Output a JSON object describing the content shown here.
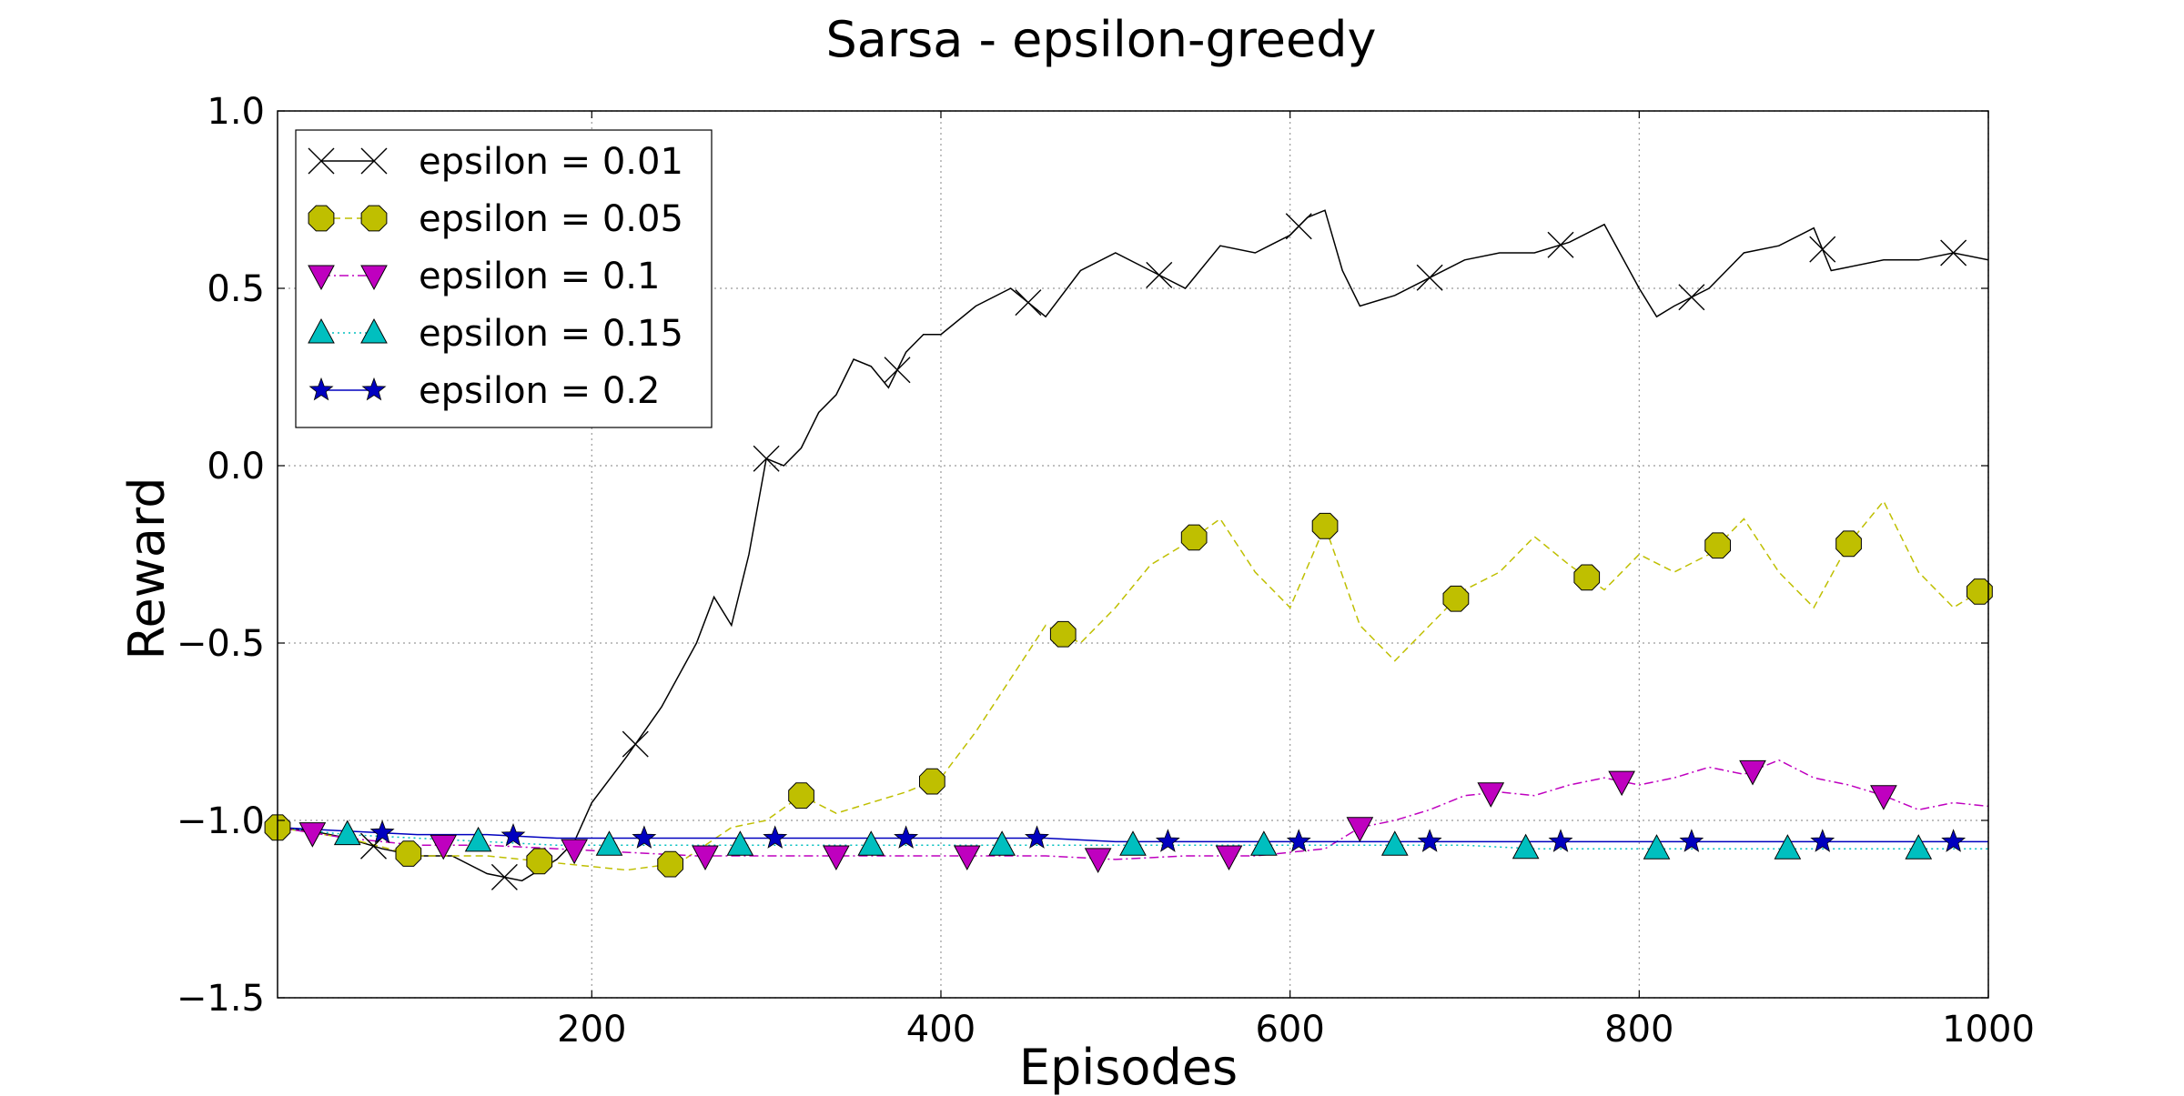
{
  "chart_data": {
    "type": "line",
    "title": "Sarsa - epsilon-greedy",
    "xlabel": "Episodes",
    "ylabel": "Reward",
    "xlim": [
      20,
      1000
    ],
    "ylim": [
      -1.5,
      1.0
    ],
    "xticks": [
      200,
      400,
      600,
      800,
      1000
    ],
    "xtick_labels": [
      "200",
      "400",
      "600",
      "800",
      "1000"
    ],
    "yticks": [
      -1.5,
      -1.0,
      -0.5,
      0.0,
      0.5,
      1.0
    ],
    "ytick_labels": [
      "−1.5",
      "−1.0",
      "−0.5",
      "0.0",
      "0.5",
      "1.0"
    ],
    "grid": true,
    "legend_position": "top-left",
    "series": [
      {
        "name": "epsilon = 0.01",
        "color": "#000000",
        "line_style": "solid",
        "marker": "x",
        "x": [
          20,
          40,
          60,
          80,
          100,
          120,
          140,
          160,
          180,
          190,
          200,
          220,
          240,
          260,
          270,
          280,
          290,
          300,
          310,
          320,
          330,
          340,
          350,
          360,
          370,
          380,
          390,
          400,
          420,
          440,
          460,
          480,
          500,
          520,
          540,
          560,
          580,
          600,
          610,
          620,
          630,
          640,
          660,
          680,
          700,
          720,
          740,
          760,
          780,
          800,
          810,
          820,
          840,
          860,
          880,
          900,
          910,
          920,
          940,
          960,
          980,
          1000
        ],
        "y": [
          -1.02,
          -1.03,
          -1.05,
          -1.08,
          -1.1,
          -1.1,
          -1.15,
          -1.17,
          -1.11,
          -1.06,
          -0.95,
          -0.82,
          -0.68,
          -0.5,
          -0.37,
          -0.45,
          -0.25,
          0.02,
          0.0,
          0.05,
          0.15,
          0.2,
          0.3,
          0.28,
          0.22,
          0.32,
          0.37,
          0.37,
          0.45,
          0.5,
          0.42,
          0.55,
          0.6,
          0.55,
          0.5,
          0.62,
          0.6,
          0.65,
          0.7,
          0.72,
          0.55,
          0.45,
          0.48,
          0.53,
          0.58,
          0.6,
          0.6,
          0.63,
          0.68,
          0.5,
          0.42,
          0.45,
          0.5,
          0.6,
          0.62,
          0.67,
          0.55,
          0.56,
          0.58,
          0.58,
          0.6,
          0.58
        ],
        "marker_x": [
          75,
          150,
          225,
          300,
          375,
          450,
          525,
          605,
          680,
          755,
          830,
          905,
          980
        ]
      },
      {
        "name": "epsilon = 0.05",
        "color": "#bfbf00",
        "line_style": "dashed",
        "marker": "octagon",
        "x": [
          20,
          60,
          100,
          140,
          180,
          220,
          250,
          280,
          300,
          320,
          340,
          360,
          380,
          400,
          420,
          440,
          460,
          480,
          500,
          520,
          540,
          560,
          580,
          600,
          620,
          640,
          660,
          680,
          700,
          720,
          740,
          760,
          780,
          800,
          820,
          840,
          860,
          880,
          900,
          920,
          940,
          960,
          980,
          1000
        ],
        "y": [
          -1.02,
          -1.05,
          -1.1,
          -1.1,
          -1.12,
          -1.14,
          -1.12,
          -1.02,
          -1.0,
          -0.93,
          -0.98,
          -0.95,
          -0.92,
          -0.88,
          -0.75,
          -0.6,
          -0.45,
          -0.5,
          -0.4,
          -0.28,
          -0.22,
          -0.15,
          -0.3,
          -0.4,
          -0.17,
          -0.45,
          -0.55,
          -0.45,
          -0.35,
          -0.3,
          -0.2,
          -0.28,
          -0.35,
          -0.25,
          -0.3,
          -0.25,
          -0.15,
          -0.3,
          -0.4,
          -0.22,
          -0.1,
          -0.3,
          -0.4,
          -0.34
        ],
        "marker_x": [
          20,
          95,
          170,
          245,
          320,
          395,
          470,
          545,
          620,
          695,
          770,
          845,
          920,
          995
        ]
      },
      {
        "name": "epsilon = 0.1",
        "color": "#bf00bf",
        "line_style": "dashdot",
        "marker": "triangle-down",
        "x": [
          20,
          60,
          100,
          140,
          180,
          220,
          260,
          300,
          340,
          380,
          420,
          460,
          500,
          540,
          580,
          620,
          640,
          660,
          680,
          700,
          720,
          740,
          760,
          780,
          800,
          820,
          840,
          860,
          880,
          900,
          920,
          940,
          960,
          980,
          1000
        ],
        "y": [
          -1.02,
          -1.05,
          -1.07,
          -1.07,
          -1.08,
          -1.09,
          -1.1,
          -1.1,
          -1.1,
          -1.1,
          -1.1,
          -1.1,
          -1.11,
          -1.1,
          -1.1,
          -1.08,
          -1.02,
          -1.0,
          -0.97,
          -0.93,
          -0.92,
          -0.93,
          -0.9,
          -0.88,
          -0.9,
          -0.88,
          -0.85,
          -0.87,
          -0.83,
          -0.88,
          -0.9,
          -0.93,
          -0.97,
          -0.95,
          -0.96
        ],
        "marker_x": [
          40,
          115,
          190,
          265,
          340,
          415,
          490,
          565,
          640,
          715,
          790,
          865,
          940
        ]
      },
      {
        "name": "epsilon = 0.15",
        "color": "#00bfbf",
        "line_style": "dotted",
        "marker": "triangle-up",
        "x": [
          20,
          60,
          100,
          140,
          180,
          220,
          260,
          300,
          340,
          380,
          420,
          460,
          500,
          540,
          580,
          620,
          660,
          700,
          740,
          780,
          820,
          860,
          900,
          940,
          980,
          1000
        ],
        "y": [
          -1.02,
          -1.04,
          -1.05,
          -1.06,
          -1.07,
          -1.07,
          -1.07,
          -1.07,
          -1.07,
          -1.07,
          -1.07,
          -1.07,
          -1.07,
          -1.07,
          -1.07,
          -1.07,
          -1.07,
          -1.07,
          -1.08,
          -1.08,
          -1.08,
          -1.08,
          -1.08,
          -1.08,
          -1.08,
          -1.08
        ],
        "marker_x": [
          60,
          135,
          210,
          285,
          360,
          435,
          510,
          585,
          660,
          735,
          810,
          885,
          960
        ]
      },
      {
        "name": "epsilon = 0.2",
        "color": "#0000bf",
        "line_style": "solid",
        "marker": "star",
        "x": [
          20,
          60,
          100,
          140,
          180,
          220,
          260,
          300,
          340,
          380,
          420,
          460,
          500,
          540,
          580,
          620,
          660,
          700,
          740,
          780,
          820,
          860,
          900,
          940,
          980,
          1000
        ],
        "y": [
          -1.02,
          -1.03,
          -1.04,
          -1.04,
          -1.05,
          -1.05,
          -1.05,
          -1.05,
          -1.05,
          -1.05,
          -1.05,
          -1.05,
          -1.06,
          -1.06,
          -1.06,
          -1.06,
          -1.06,
          -1.06,
          -1.06,
          -1.06,
          -1.06,
          -1.06,
          -1.06,
          -1.06,
          -1.06,
          -1.06
        ],
        "marker_x": [
          80,
          155,
          230,
          305,
          380,
          455,
          530,
          605,
          680,
          755,
          830,
          905,
          980
        ]
      }
    ]
  }
}
